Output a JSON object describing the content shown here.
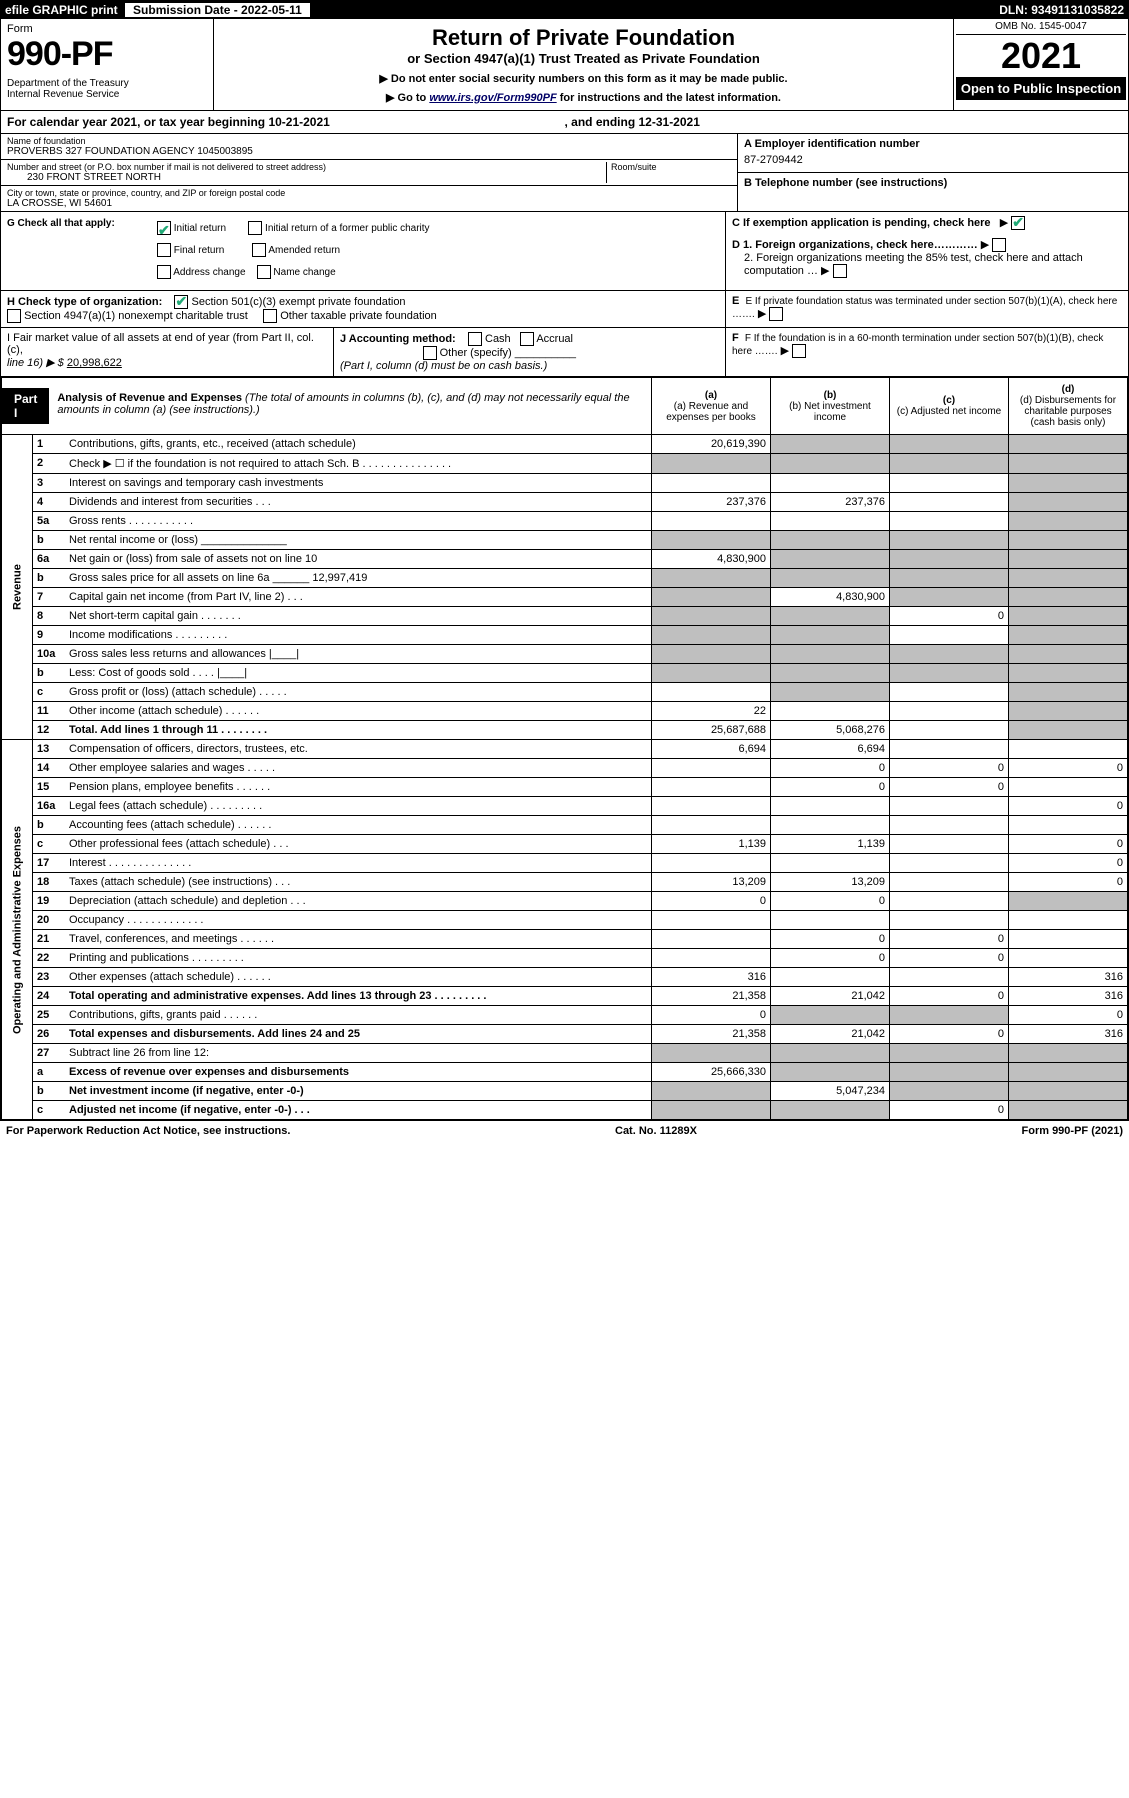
{
  "topbar": {
    "efile": "efile GRAPHIC print",
    "subm_label": "Submission Date - 2022-05-11",
    "dln": "DLN: 93491131035822"
  },
  "header": {
    "form_word": "Form",
    "form_number": "990-PF",
    "dept": "Department of the Treasury\nInternal Revenue Service",
    "title": "Return of Private Foundation",
    "subtitle": "or Section 4947(a)(1) Trust Treated as Private Foundation",
    "instr1": "▶ Do not enter social security numbers on this form as it may be made public.",
    "instr2_pre": "▶ Go to ",
    "instr2_link": "www.irs.gov/Form990PF",
    "instr2_post": " for instructions and the latest information.",
    "omb": "OMB No. 1545-0047",
    "year": "2021",
    "open": "Open to Public Inspection"
  },
  "calendar": {
    "text_a": "For calendar year 2021, or tax year beginning 10-21-2021",
    "text_b": ", and ending 12-31-2021"
  },
  "ident": {
    "name_label": "Name of foundation",
    "name": "PROVERBS 327 FOUNDATION AGENCY 1045003895",
    "addr_label": "Number and street (or P.O. box number if mail is not delivered to street address)",
    "addr": "230 FRONT STREET NORTH",
    "room_label": "Room/suite",
    "city_label": "City or town, state or province, country, and ZIP or foreign postal code",
    "city": "LA CROSSE, WI  54601",
    "a_label": "A Employer identification number",
    "a_value": "87-2709442",
    "b_label": "B Telephone number (see instructions)",
    "c_label": "C If exemption application is pending, check here",
    "d1": "D 1. Foreign organizations, check here…………",
    "d2": "2. Foreign organizations meeting the 85% test, check here and attach computation …",
    "e_label": "E  If private foundation status was terminated under section 507(b)(1)(A), check here …….",
    "f_label": "F  If the foundation is in a 60-month termination under section 507(b)(1)(B), check here ……."
  },
  "g": {
    "label": "G Check all that apply:",
    "opt1": "Initial return",
    "opt2": "Final return",
    "opt3": "Address change",
    "opt4": "Initial return of a former public charity",
    "opt5": "Amended return",
    "opt6": "Name change"
  },
  "h": {
    "label": "H Check type of organization:",
    "opt1": "Section 501(c)(3) exempt private foundation",
    "opt2": "Section 4947(a)(1) nonexempt charitable trust",
    "opt3": "Other taxable private foundation"
  },
  "i": {
    "label": "I Fair market value of all assets at end of year (from Part II, col. (c),",
    "line": "line 16) ▶ $  ",
    "value": "20,998,622"
  },
  "j": {
    "label": "J Accounting method:",
    "cash": "Cash",
    "accrual": "Accrual",
    "other": "Other (specify)",
    "note": "(Part I, column (d) must be on cash basis.)"
  },
  "part1": {
    "tab": "Part I",
    "title": "Analysis of Revenue and Expenses",
    "note": " (The total of amounts in columns (b), (c), and (d) may not necessarily equal the amounts in column (a) (see instructions).)",
    "col_a": "(a)   Revenue and expenses per books",
    "col_b": "(b)   Net investment income",
    "col_c": "(c)   Adjusted net income",
    "col_d": "(d)   Disbursements for charitable purposes (cash basis only)"
  },
  "sidebars": {
    "revenue": "Revenue",
    "expenses": "Operating and Administrative Expenses"
  },
  "rows": [
    {
      "n": "1",
      "label": "Contributions, gifts, grants, etc., received (attach schedule)",
      "a": "20,619,390",
      "b": "shaded",
      "c": "shaded",
      "d": "shaded"
    },
    {
      "n": "2",
      "label": "Check ▶ ☐ if the foundation is not required to attach Sch. B   .   .   .   .   .   .   .   .   .   .   .   .   .   .   .",
      "a": "shaded",
      "b": "shaded",
      "c": "shaded",
      "d": "shaded"
    },
    {
      "n": "3",
      "label": "Interest on savings and temporary cash investments",
      "a": "",
      "b": "",
      "c": "",
      "d": "shaded"
    },
    {
      "n": "4",
      "label": "Dividends and interest from securities   .   .   .",
      "a": "237,376",
      "b": "237,376",
      "c": "",
      "d": "shaded"
    },
    {
      "n": "5a",
      "label": "Gross rents   .   .   .   .   .   .   .   .   .   .   .",
      "a": "",
      "b": "",
      "c": "",
      "d": "shaded"
    },
    {
      "n": "b",
      "label": "Net rental income or (loss)   ______________",
      "a": "shaded",
      "b": "shaded",
      "c": "shaded",
      "d": "shaded"
    },
    {
      "n": "6a",
      "label": "Net gain or (loss) from sale of assets not on line 10",
      "a": "4,830,900",
      "b": "shaded",
      "c": "shaded",
      "d": "shaded"
    },
    {
      "n": "b",
      "label": "Gross sales price for all assets on line 6a ______ 12,997,419",
      "a": "shaded",
      "b": "shaded",
      "c": "shaded",
      "d": "shaded"
    },
    {
      "n": "7",
      "label": "Capital gain net income (from Part IV, line 2)   .   .   .",
      "a": "shaded",
      "b": "4,830,900",
      "c": "shaded",
      "d": "shaded"
    },
    {
      "n": "8",
      "label": "Net short-term capital gain   .   .   .   .   .   .   .",
      "a": "shaded",
      "b": "shaded",
      "c": "0",
      "d": "shaded"
    },
    {
      "n": "9",
      "label": "Income modifications .   .   .   .   .   .   .   .   .",
      "a": "shaded",
      "b": "shaded",
      "c": "",
      "d": "shaded"
    },
    {
      "n": "10a",
      "label": "Gross sales less returns and allowances  |____|",
      "a": "shaded",
      "b": "shaded",
      "c": "shaded",
      "d": "shaded"
    },
    {
      "n": "b",
      "label": "Less: Cost of goods sold   .   .   .   .   |____|",
      "a": "shaded",
      "b": "shaded",
      "c": "shaded",
      "d": "shaded"
    },
    {
      "n": "c",
      "label": "Gross profit or (loss) (attach schedule)   .   .   .   .   .",
      "a": "",
      "b": "shaded",
      "c": "",
      "d": "shaded"
    },
    {
      "n": "11",
      "label": "Other income (attach schedule)   .   .   .   .   .   .",
      "a": "22",
      "b": "",
      "c": "",
      "d": "shaded"
    },
    {
      "n": "12",
      "label": "Total. Add lines 1 through 11   .   .   .   .   .   .   .   .",
      "bold": true,
      "a": "25,687,688",
      "b": "5,068,276",
      "c": "",
      "d": "shaded"
    },
    {
      "n": "13",
      "label": "Compensation of officers, directors, trustees, etc.",
      "a": "6,694",
      "b": "6,694",
      "c": "",
      "d": ""
    },
    {
      "n": "14",
      "label": "Other employee salaries and wages   .   .   .   .   .",
      "a": "",
      "b": "0",
      "c": "0",
      "d": "0"
    },
    {
      "n": "15",
      "label": "Pension plans, employee benefits   .   .   .   .   .   .",
      "a": "",
      "b": "0",
      "c": "0",
      "d": ""
    },
    {
      "n": "16a",
      "label": "Legal fees (attach schedule) .   .   .   .   .   .   .   .   .",
      "a": "",
      "b": "",
      "c": "",
      "d": "0"
    },
    {
      "n": "b",
      "label": "Accounting fees (attach schedule)   .   .   .   .   .   .",
      "a": "",
      "b": "",
      "c": "",
      "d": ""
    },
    {
      "n": "c",
      "label": "Other professional fees (attach schedule)   .   .   .",
      "a": "1,139",
      "b": "1,139",
      "c": "",
      "d": "0"
    },
    {
      "n": "17",
      "label": "Interest .   .   .   .   .   .   .   .   .   .   .   .   .   .",
      "a": "",
      "b": "",
      "c": "",
      "d": "0"
    },
    {
      "n": "18",
      "label": "Taxes (attach schedule) (see instructions)   .   .   .",
      "a": "13,209",
      "b": "13,209",
      "c": "",
      "d": "0"
    },
    {
      "n": "19",
      "label": "Depreciation (attach schedule) and depletion   .   .   .",
      "a": "0",
      "b": "0",
      "c": "",
      "d": "shaded"
    },
    {
      "n": "20",
      "label": "Occupancy .   .   .   .   .   .   .   .   .   .   .   .   .",
      "a": "",
      "b": "",
      "c": "",
      "d": ""
    },
    {
      "n": "21",
      "label": "Travel, conferences, and meetings   .   .   .   .   .   .",
      "a": "",
      "b": "0",
      "c": "0",
      "d": ""
    },
    {
      "n": "22",
      "label": "Printing and publications .   .   .   .   .   .   .   .   .",
      "a": "",
      "b": "0",
      "c": "0",
      "d": ""
    },
    {
      "n": "23",
      "label": "Other expenses (attach schedule)   .   .   .   .   .   .",
      "a": "316",
      "b": "",
      "c": "",
      "d": "316"
    },
    {
      "n": "24",
      "label": "Total operating and administrative expenses. Add lines 13 through 23   .   .   .   .   .   .   .   .   .",
      "bold": true,
      "a": "21,358",
      "b": "21,042",
      "c": "0",
      "d": "316"
    },
    {
      "n": "25",
      "label": "Contributions, gifts, grants paid   .   .   .   .   .   .",
      "a": "0",
      "b": "shaded",
      "c": "shaded",
      "d": "0"
    },
    {
      "n": "26",
      "label": "Total expenses and disbursements. Add lines 24 and 25",
      "bold": true,
      "a": "21,358",
      "b": "21,042",
      "c": "0",
      "d": "316"
    },
    {
      "n": "27",
      "label": "Subtract line 26 from line 12:",
      "a": "shaded",
      "b": "shaded",
      "c": "shaded",
      "d": "shaded"
    },
    {
      "n": "a",
      "label": "Excess of revenue over expenses and disbursements",
      "bold": true,
      "a": "25,666,330",
      "b": "shaded",
      "c": "shaded",
      "d": "shaded"
    },
    {
      "n": "b",
      "label": "Net investment income (if negative, enter -0-)",
      "bold": true,
      "a": "shaded",
      "b": "5,047,234",
      "c": "shaded",
      "d": "shaded"
    },
    {
      "n": "c",
      "label": "Adjusted net income (if negative, enter -0-)   .   .   .",
      "bold": true,
      "a": "shaded",
      "b": "shaded",
      "c": "0",
      "d": "shaded"
    }
  ],
  "footer": {
    "left": "For Paperwork Reduction Act Notice, see instructions.",
    "mid": "Cat. No. 11289X",
    "right": "Form 990-PF (2021)"
  },
  "colors": {
    "black": "#000000",
    "shaded": "#bfbfbf",
    "link": "#0033cc",
    "check": "#22aa55"
  }
}
